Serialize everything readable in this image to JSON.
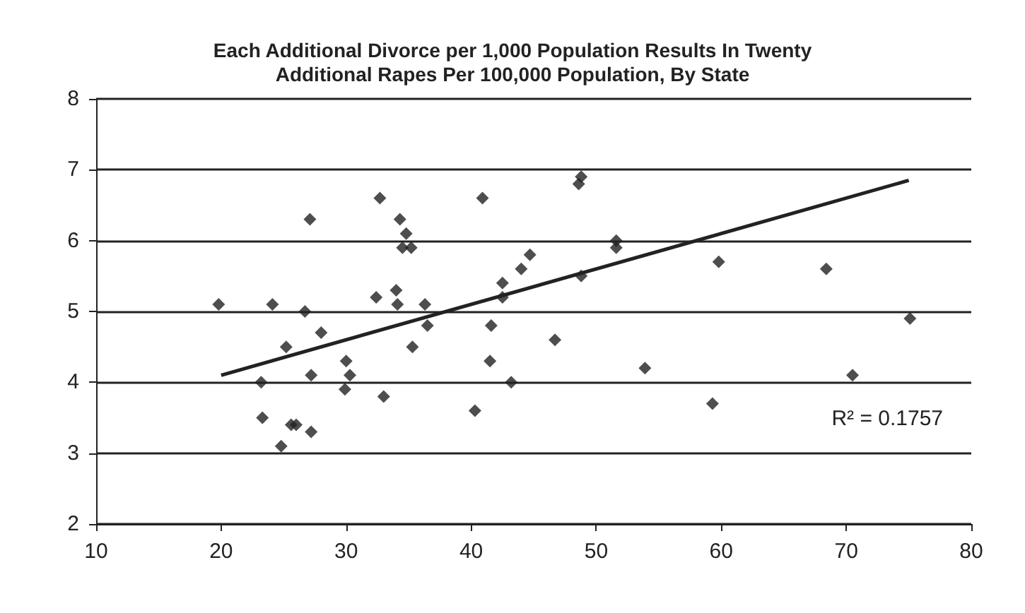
{
  "chart_data": {
    "type": "scatter",
    "title": "Each Additional Divorce per 1,000 Population Results In Twenty\nAdditional Rapes Per 100,000 Population, By State",
    "xlim": [
      10,
      80
    ],
    "xticks": [
      10,
      20,
      30,
      40,
      50,
      60,
      70,
      80
    ],
    "ylim": [
      2,
      8
    ],
    "yticks": [
      2,
      3,
      4,
      5,
      6,
      7,
      8
    ],
    "grid": "y",
    "annotations": [
      "R² = 0.1757"
    ],
    "series": [
      {
        "marker": "diamond",
        "color": "#222222",
        "x": [
          19.8,
          24.1,
          26.7,
          27.1,
          25.2,
          28.0,
          23.2,
          23.3,
          25.6,
          26.0,
          27.2,
          24.8,
          27.2,
          29.9,
          30.0,
          30.3,
          32.4,
          32.7,
          33.0,
          34.0,
          34.3,
          34.1,
          34.8,
          34.5,
          35.2,
          35.3,
          36.3,
          36.5,
          40.3,
          40.9,
          41.6,
          41.5,
          42.5,
          42.5,
          43.2,
          48.6,
          48.8,
          51.6,
          51.6,
          59.8,
          68.4,
          75.1,
          70.5,
          59.3,
          53.9,
          46.7,
          44.0,
          44.7,
          48.8
        ],
        "values": [
          5.1,
          5.1,
          5.0,
          6.3,
          4.5,
          4.7,
          4.0,
          3.5,
          3.4,
          3.4,
          3.3,
          3.1,
          4.1,
          3.9,
          4.3,
          4.1,
          5.2,
          6.6,
          3.8,
          5.3,
          6.3,
          5.1,
          6.1,
          5.9,
          5.9,
          4.5,
          5.1,
          4.8,
          3.6,
          6.6,
          4.8,
          4.3,
          5.4,
          5.2,
          4.0,
          6.8,
          6.9,
          6.0,
          5.9,
          5.7,
          5.6,
          4.9,
          4.1,
          3.7,
          4.2,
          4.6,
          5.6,
          5.8,
          5.5
        ]
      },
      {
        "type": "line",
        "color": "#222222",
        "x": [
          20,
          75
        ],
        "values": [
          4.1,
          6.85
        ]
      }
    ]
  }
}
